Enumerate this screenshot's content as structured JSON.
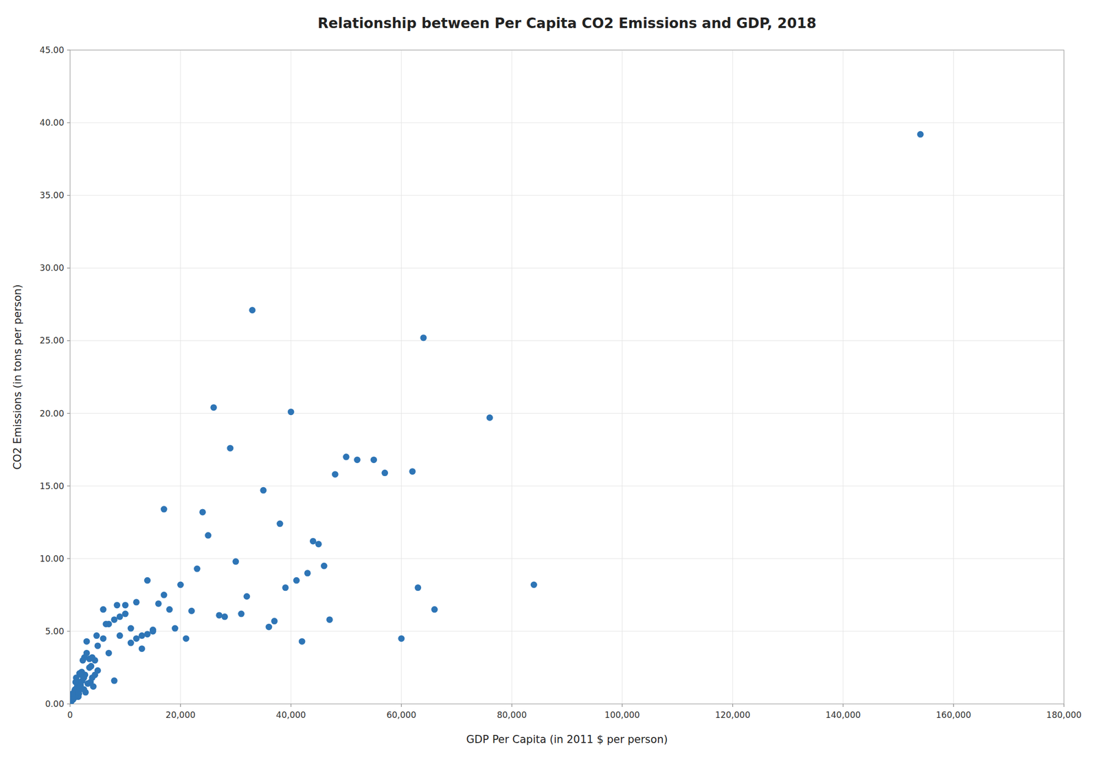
{
  "chart_data": {
    "type": "scatter",
    "title": "Relationship between Per Capita CO2 Emissions and GDP, 2018",
    "xlabel": "GDP Per Capita (in 2011 $ per person)",
    "ylabel": "CO2 Emissions (in tons per person)",
    "xlim": [
      0,
      180000
    ],
    "ylim": [
      0,
      45
    ],
    "xticks": [
      0,
      {
        "value": 20000,
        "label": "20,000"
      },
      {
        "value": 40000,
        "label": "40,000"
      },
      {
        "value": 60000,
        "label": "60,000"
      },
      {
        "value": 80000,
        "label": "80,000"
      },
      {
        "value": 100000,
        "label": "100,000"
      },
      {
        "value": 120000,
        "label": "120,000"
      },
      {
        "value": 140000,
        "label": "140,000"
      },
      {
        "value": 160000,
        "label": "160,000"
      },
      {
        "value": 180000,
        "label": "180,000"
      }
    ],
    "yticks": [
      {
        "value": 0,
        "label": "0.00"
      },
      {
        "value": 5,
        "label": "5.00"
      },
      {
        "value": 10,
        "label": "10.00"
      },
      {
        "value": 15,
        "label": "15.00"
      },
      {
        "value": 20,
        "label": "20.00"
      },
      {
        "value": 25,
        "label": "25.00"
      },
      {
        "value": 30,
        "label": "30.00"
      },
      {
        "value": 35,
        "label": "35.00"
      },
      {
        "value": 40,
        "label": "40.00"
      },
      {
        "value": 45,
        "label": "45.00"
      }
    ],
    "color": "#2E75B6",
    "grid": true,
    "x": [
      154000,
      76000,
      84000,
      64000,
      66000,
      60000,
      62000,
      63000,
      55000,
      57000,
      48000,
      50000,
      52000,
      43000,
      44000,
      45000,
      46000,
      47000,
      40000,
      41000,
      42000,
      38000,
      39000,
      35000,
      36000,
      37000,
      30000,
      31000,
      32000,
      33000,
      27000,
      28000,
      29000,
      24000,
      25000,
      26000,
      21000,
      22000,
      23000,
      18000,
      19000,
      20000,
      16000,
      17000,
      14000,
      15000,
      12000,
      13000,
      10000,
      11000,
      8000,
      9000,
      6000,
      7000,
      5000,
      4500,
      4800,
      4000,
      4200,
      3500,
      3700,
      3800,
      3000,
      3200,
      2500,
      2600,
      2700,
      2800,
      2000,
      2100,
      2200,
      2300,
      1800,
      1900,
      1500,
      1600,
      1700,
      1200,
      1300,
      1400,
      900,
      1000,
      1100,
      700,
      800,
      500,
      600,
      300,
      400,
      200,
      250,
      100,
      150,
      50,
      80,
      20,
      30,
      5,
      10,
      1000,
      2000,
      3000,
      5000,
      7000,
      9000,
      11000,
      13000,
      15000,
      17000,
      1500,
      2500,
      3500,
      4500,
      6000,
      8000,
      10000,
      12000,
      14000,
      500,
      1500,
      2500,
      4000,
      6500,
      8500
    ],
    "values": [
      39.2,
      19.7,
      8.2,
      25.2,
      6.5,
      4.5,
      16.0,
      8.0,
      16.8,
      15.9,
      15.8,
      17.0,
      16.8,
      9.0,
      11.2,
      11.0,
      9.5,
      5.8,
      20.1,
      8.5,
      4.3,
      12.4,
      8.0,
      14.7,
      5.3,
      5.7,
      9.8,
      6.2,
      7.4,
      27.1,
      6.1,
      6.0,
      17.6,
      13.2,
      11.6,
      20.4,
      4.5,
      6.4,
      9.3,
      6.5,
      5.2,
      8.2,
      6.9,
      13.4,
      4.8,
      5.1,
      4.5,
      4.7,
      6.8,
      5.2,
      1.6,
      4.7,
      6.5,
      3.5,
      2.3,
      2.0,
      4.7,
      1.8,
      1.2,
      3.1,
      1.5,
      2.6,
      4.3,
      1.4,
      1.9,
      3.2,
      2.0,
      0.8,
      1.1,
      2.2,
      1.6,
      3.0,
      1.0,
      1.3,
      1.5,
      0.7,
      2.1,
      0.8,
      1.2,
      0.5,
      1.0,
      0.6,
      1.8,
      0.4,
      0.9,
      0.3,
      0.5,
      0.4,
      0.7,
      0.2,
      0.3,
      0.1,
      0.15,
      0.05,
      0.1,
      0.02,
      0.04,
      0.01,
      0.03,
      1.5,
      2.0,
      3.5,
      4.0,
      5.5,
      6.0,
      4.2,
      3.8,
      5.0,
      7.5,
      0.5,
      1.0,
      2.5,
      3.0,
      4.5,
      5.8,
      6.2,
      7.0,
      8.5,
      0.3,
      0.8,
      1.8,
      3.2,
      5.5,
      6.8
    ]
  }
}
